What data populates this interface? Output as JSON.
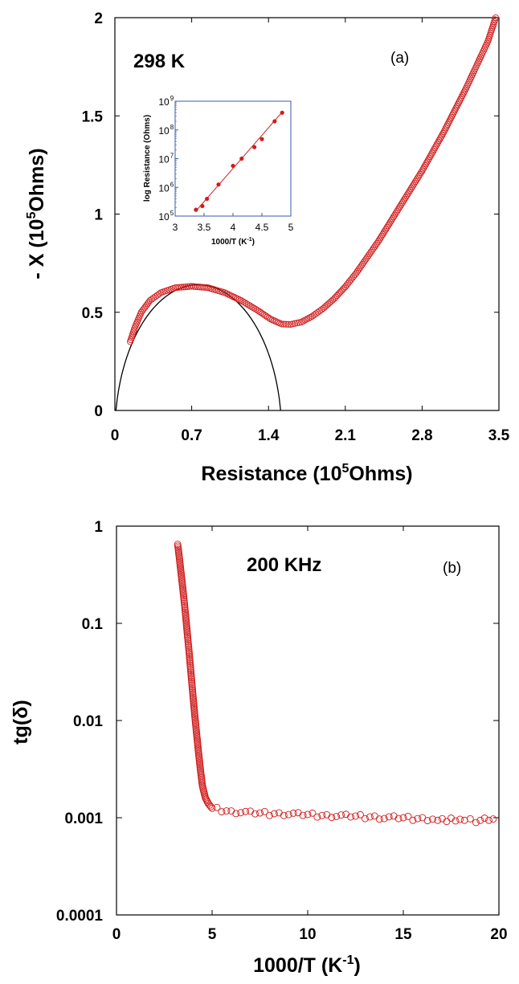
{
  "chart_data": [
    {
      "panel": "a",
      "type": "scatter",
      "annotation": "298 K",
      "panel_label": "(a)",
      "xlabel": {
        "pre": "Resistance (10",
        "sup": "5",
        "post": "Ohms)"
      },
      "ylabel": {
        "pre": "- X (10",
        "sup": "5",
        "post": "Ohms)"
      },
      "xlim": [
        0,
        3.5
      ],
      "ylim": [
        0,
        2
      ],
      "xticks": [
        "0",
        "0.7",
        "1.4",
        "2.1",
        "2.8",
        "3.5"
      ],
      "xtick_values": [
        0,
        0.7,
        1.4,
        2.1,
        2.8,
        3.5
      ],
      "yticks": [
        "0",
        "0.5",
        "1",
        "1.5",
        "2"
      ],
      "ytick_values": [
        0,
        0.5,
        1,
        1.5,
        2
      ],
      "series": [
        {
          "marker": "open-circle",
          "color": "#d01c1c",
          "points": [
            [
              0.14,
              0.35
            ],
            [
              0.18,
              0.42
            ],
            [
              0.24,
              0.5
            ],
            [
              0.32,
              0.56
            ],
            [
              0.42,
              0.6
            ],
            [
              0.55,
              0.625
            ],
            [
              0.7,
              0.632
            ],
            [
              0.85,
              0.625
            ],
            [
              1.0,
              0.6
            ],
            [
              1.15,
              0.56
            ],
            [
              1.3,
              0.51
            ],
            [
              1.42,
              0.465
            ],
            [
              1.52,
              0.44
            ],
            [
              1.6,
              0.438
            ],
            [
              1.7,
              0.45
            ],
            [
              1.8,
              0.48
            ],
            [
              1.9,
              0.52
            ],
            [
              2.0,
              0.57
            ],
            [
              2.1,
              0.63
            ],
            [
              2.2,
              0.7
            ],
            [
              2.3,
              0.78
            ],
            [
              2.4,
              0.86
            ],
            [
              2.5,
              0.95
            ],
            [
              2.6,
              1.04
            ],
            [
              2.7,
              1.13
            ],
            [
              2.8,
              1.22
            ],
            [
              2.9,
              1.32
            ],
            [
              3.0,
              1.42
            ],
            [
              3.1,
              1.53
            ],
            [
              3.2,
              1.64
            ],
            [
              3.3,
              1.76
            ],
            [
              3.4,
              1.88
            ],
            [
              3.47,
              2.0
            ]
          ]
        },
        {
          "marker": "line",
          "color": "#000000",
          "fit": "semicircle",
          "center": [
            0.76,
            -0.12
          ],
          "radius": 0.76
        }
      ],
      "inset": {
        "type": "scatter",
        "xlabel": {
          "pre": "1000/T (K",
          "sup": "-1",
          "post": ")"
        },
        "ylabel": "log Resistance (Ohms)",
        "xlim": [
          3,
          5
        ],
        "ylim_exp": [
          5,
          9
        ],
        "log_y": true,
        "xticks": [
          "3",
          "3.5",
          "4",
          "4.5",
          "5"
        ],
        "xtick_values": [
          3,
          3.5,
          4,
          4.5,
          5
        ],
        "yticks": [
          "10",
          "10",
          "10",
          "10",
          "10"
        ],
        "ytick_exps": [
          "5",
          "6",
          "7",
          "8",
          "9"
        ],
        "ytick_values": [
          5,
          6,
          7,
          8,
          9
        ],
        "color": "#d01c1c",
        "points": [
          [
            3.36,
            5.22
          ],
          [
            3.47,
            5.35
          ],
          [
            3.55,
            5.6
          ],
          [
            3.75,
            6.1
          ],
          [
            4.0,
            6.75
          ],
          [
            4.15,
            7.0
          ],
          [
            4.37,
            7.4
          ],
          [
            4.5,
            7.68
          ],
          [
            4.72,
            8.3
          ],
          [
            4.85,
            8.6
          ]
        ],
        "fit_line": [
          [
            3.36,
            5.18
          ],
          [
            4.85,
            8.62
          ]
        ]
      }
    },
    {
      "panel": "b",
      "type": "scatter",
      "annotation": "200 KHz",
      "panel_label": "(b)",
      "xlabel": {
        "pre": "1000/T (K",
        "sup": "-1",
        "post": ")"
      },
      "ylabel": "tg(δ)",
      "xlim": [
        0,
        20
      ],
      "ylim": [
        0.0001,
        1
      ],
      "log_y": true,
      "xticks": [
        "0",
        "5",
        "10",
        "15",
        "20"
      ],
      "xtick_values": [
        0,
        5,
        10,
        15,
        20
      ],
      "yticks": [
        "1",
        "0.1",
        "0.01",
        "0.001",
        "0.0001"
      ],
      "ytick_values": [
        1,
        0.1,
        0.01,
        0.001,
        0.0001
      ],
      "series": [
        {
          "marker": "open-circle",
          "color": "#d01c1c",
          "points": [
            [
              3.2,
              0.65
            ],
            [
              3.3,
              0.45
            ],
            [
              3.4,
              0.3
            ],
            [
              3.5,
              0.2
            ],
            [
              3.6,
              0.13
            ],
            [
              3.7,
              0.08
            ],
            [
              3.8,
              0.05
            ],
            [
              3.9,
              0.03
            ],
            [
              4.0,
              0.018
            ],
            [
              4.1,
              0.011
            ],
            [
              4.2,
              0.007
            ],
            [
              4.3,
              0.0045
            ],
            [
              4.4,
              0.003
            ],
            [
              4.5,
              0.0021
            ],
            [
              4.65,
              0.0016
            ],
            [
              4.8,
              0.0014
            ],
            [
              5.0,
              0.00125
            ],
            [
              5.5,
              0.0012
            ],
            [
              6.0,
              0.00115
            ],
            [
              6.5,
              0.00115
            ],
            [
              7.0,
              0.00112
            ],
            [
              7.5,
              0.00112
            ],
            [
              8.0,
              0.0011
            ],
            [
              8.5,
              0.0011
            ],
            [
              9.0,
              0.0011
            ],
            [
              9.5,
              0.00108
            ],
            [
              10.0,
              0.00108
            ],
            [
              10.5,
              0.00106
            ],
            [
              11.0,
              0.00105
            ],
            [
              11.5,
              0.00105
            ],
            [
              12.0,
              0.00104
            ],
            [
              12.5,
              0.00104
            ],
            [
              13.0,
              0.00102
            ],
            [
              13.5,
              0.00102
            ],
            [
              14.0,
              0.001
            ],
            [
              14.5,
              0.001
            ],
            [
              15.0,
              0.001
            ],
            [
              15.5,
              0.00098
            ],
            [
              16.0,
              0.00098
            ],
            [
              16.8,
              0.00096
            ],
            [
              17.5,
              0.00095
            ],
            [
              18.2,
              0.00094
            ],
            [
              18.8,
              0.00093
            ],
            [
              19.7,
              0.00097
            ]
          ]
        }
      ]
    }
  ]
}
